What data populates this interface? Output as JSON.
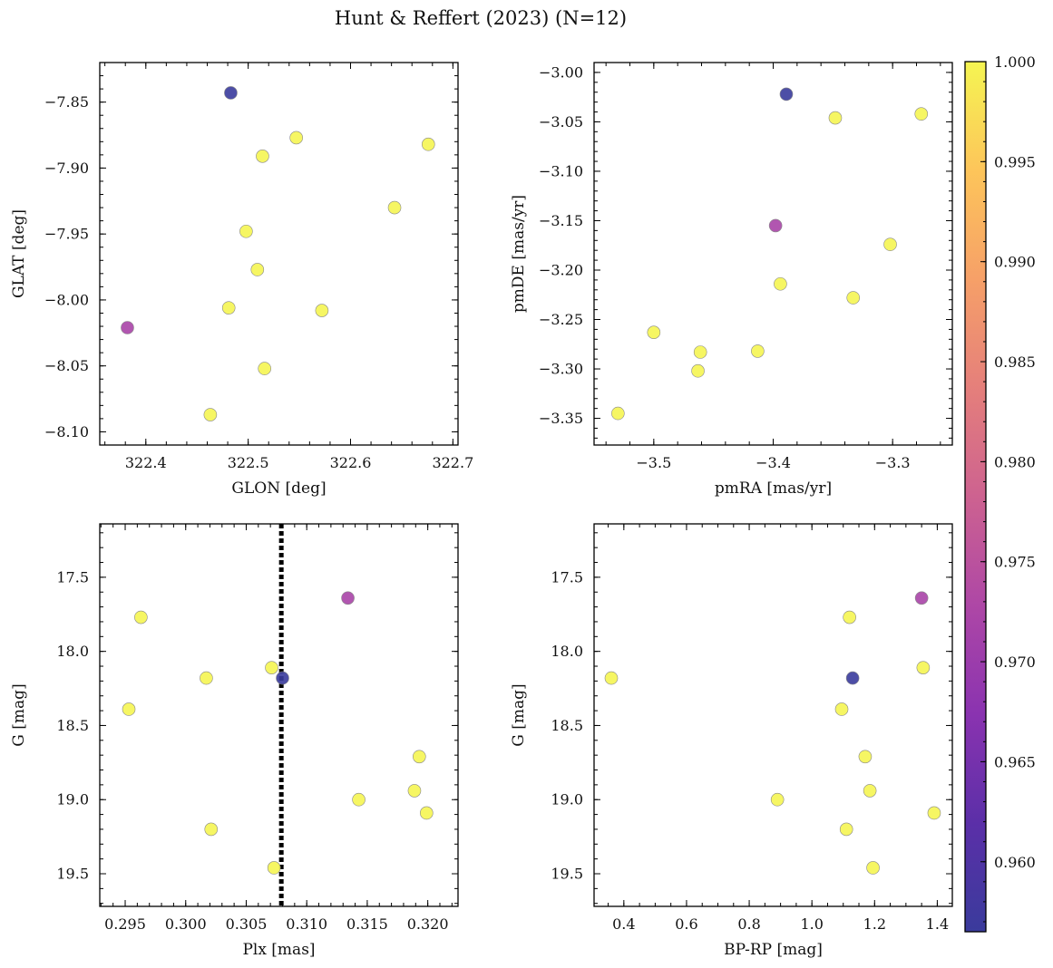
{
  "figure": {
    "title": "Hunt & Reffert (2023) (N=12)"
  },
  "colorbar": {
    "min": 0.9565,
    "max": 1.0,
    "ticks": [
      0.96,
      0.965,
      0.97,
      0.975,
      0.98,
      0.985,
      0.99,
      0.995,
      1.0
    ],
    "tick_labels": [
      "0.960",
      "0.965",
      "0.970",
      "0.975",
      "0.980",
      "0.985",
      "0.990",
      "0.995",
      "1.000"
    ],
    "colormap": "plasma"
  },
  "stars": [
    {
      "glon": 322.483,
      "glat": -7.843,
      "pmra": -3.389,
      "pmde": -3.022,
      "plx": 0.308,
      "bprp": 1.13,
      "g": 18.18,
      "prob": 0.9565
    },
    {
      "glon": 322.382,
      "glat": -8.021,
      "pmra": -3.398,
      "pmde": -3.155,
      "plx": 0.3134,
      "bprp": 1.35,
      "g": 17.64,
      "prob": 0.972
    },
    {
      "glon": 322.547,
      "glat": -7.877,
      "pmra": -3.348,
      "pmde": -3.046,
      "plx": 0.2963,
      "bprp": 1.12,
      "g": 17.77,
      "prob": 1.0
    },
    {
      "glon": 322.676,
      "glat": -7.882,
      "pmra": -3.276,
      "pmde": -3.042,
      "plx": 0.3017,
      "bprp": 0.36,
      "g": 18.18,
      "prob": 1.0
    },
    {
      "glon": 322.514,
      "glat": -7.891,
      "pmra": -3.302,
      "pmde": -3.174,
      "plx": 0.3071,
      "bprp": 1.355,
      "g": 18.11,
      "prob": 1.0
    },
    {
      "glon": 322.643,
      "glat": -7.93,
      "pmra": -3.394,
      "pmde": -3.214,
      "plx": 0.2953,
      "bprp": 1.095,
      "g": 18.39,
      "prob": 1.0
    },
    {
      "glon": 322.498,
      "glat": -7.948,
      "pmra": -3.333,
      "pmde": -3.228,
      "plx": 0.3193,
      "bprp": 1.17,
      "g": 18.71,
      "prob": 1.0
    },
    {
      "glon": 322.509,
      "glat": -7.977,
      "pmra": -3.5,
      "pmde": -3.263,
      "plx": 0.3189,
      "bprp": 1.185,
      "g": 18.94,
      "prob": 1.0
    },
    {
      "glon": 322.481,
      "glat": -8.006,
      "pmra": -3.461,
      "pmde": -3.283,
      "plx": 0.3143,
      "bprp": 0.89,
      "g": 19.0,
      "prob": 1.0
    },
    {
      "glon": 322.572,
      "glat": -8.008,
      "pmra": -3.413,
      "pmde": -3.282,
      "plx": 0.3199,
      "bprp": 1.39,
      "g": 19.09,
      "prob": 1.0
    },
    {
      "glon": 322.516,
      "glat": -8.052,
      "pmra": -3.463,
      "pmde": -3.302,
      "plx": 0.3021,
      "bprp": 1.11,
      "g": 19.2,
      "prob": 1.0
    },
    {
      "glon": 322.463,
      "glat": -8.087,
      "pmra": -3.53,
      "pmde": -3.345,
      "plx": 0.3073,
      "bprp": 1.195,
      "g": 19.46,
      "prob": 1.0
    }
  ],
  "chart_data": [
    {
      "type": "scatter",
      "xkey": "glon",
      "ykey": "glat",
      "xlabel": "GLON [deg]",
      "ylabel": "GLAT [deg]",
      "xlim": [
        322.355,
        322.705
      ],
      "ylim": [
        -8.11,
        -7.82
      ],
      "yinvert": false,
      "xticks": [
        322.4,
        322.5,
        322.6,
        322.7
      ],
      "xtick_labels": [
        "322.4",
        "322.5",
        "322.6",
        "322.7"
      ],
      "xminor": 0.02,
      "yticks": [
        -7.85,
        -7.9,
        -7.95,
        -8.0,
        -8.05,
        -8.1
      ],
      "ytick_labels": [
        "−7.85",
        "−7.90",
        "−7.95",
        "−8.00",
        "−8.05",
        "−8.10"
      ],
      "yminor": 0.01,
      "vline": null
    },
    {
      "type": "scatter",
      "xkey": "pmra",
      "ykey": "pmde",
      "xlabel": "pmRA [mas/yr]",
      "ylabel": "pmDE [mas/yr]",
      "xlim": [
        -3.55,
        -3.25
      ],
      "ylim": [
        -3.377,
        -2.99
      ],
      "yinvert": false,
      "xticks": [
        -3.5,
        -3.4,
        -3.3
      ],
      "xtick_labels": [
        "−3.5",
        "−3.4",
        "−3.3"
      ],
      "xminor": 0.02,
      "yticks": [
        -3.0,
        -3.05,
        -3.1,
        -3.15,
        -3.2,
        -3.25,
        -3.3,
        -3.35
      ],
      "ytick_labels": [
        "−3.00",
        "−3.05",
        "−3.10",
        "−3.15",
        "−3.20",
        "−3.25",
        "−3.30",
        "−3.35"
      ],
      "yminor": 0.01,
      "vline": null
    },
    {
      "type": "scatter",
      "xkey": "plx",
      "ykey": "g",
      "xlabel": "Plx [mas]",
      "ylabel": "G [mag]",
      "xlim": [
        0.2929,
        0.3225
      ],
      "ylim": [
        17.14,
        19.72
      ],
      "yinvert": true,
      "xticks": [
        0.295,
        0.3,
        0.305,
        0.31,
        0.315,
        0.32
      ],
      "xtick_labels": [
        "0.295",
        "0.300",
        "0.305",
        "0.310",
        "0.315",
        "0.320"
      ],
      "xminor": 0.001,
      "yticks": [
        17.5,
        18.0,
        18.5,
        19.0,
        19.5
      ],
      "ytick_labels": [
        "17.5",
        "18.0",
        "18.5",
        "19.0",
        "19.5"
      ],
      "yminor": 0.1,
      "vline": 0.3079
    },
    {
      "type": "scatter",
      "xkey": "bprp",
      "ykey": "g",
      "xlabel": "BP-RP [mag]",
      "ylabel": "G [mag]",
      "xlim": [
        0.305,
        1.448
      ],
      "ylim": [
        17.14,
        19.72
      ],
      "yinvert": true,
      "xticks": [
        0.4,
        0.6,
        0.8,
        1.0,
        1.2,
        1.4
      ],
      "xtick_labels": [
        "0.4",
        "0.6",
        "0.8",
        "1.0",
        "1.2",
        "1.4"
      ],
      "xminor": 0.05,
      "yticks": [
        17.5,
        18.0,
        18.5,
        19.0,
        19.5
      ],
      "ytick_labels": [
        "17.5",
        "18.0",
        "18.5",
        "19.0",
        "19.5"
      ],
      "yminor": 0.1,
      "vline": null
    }
  ]
}
